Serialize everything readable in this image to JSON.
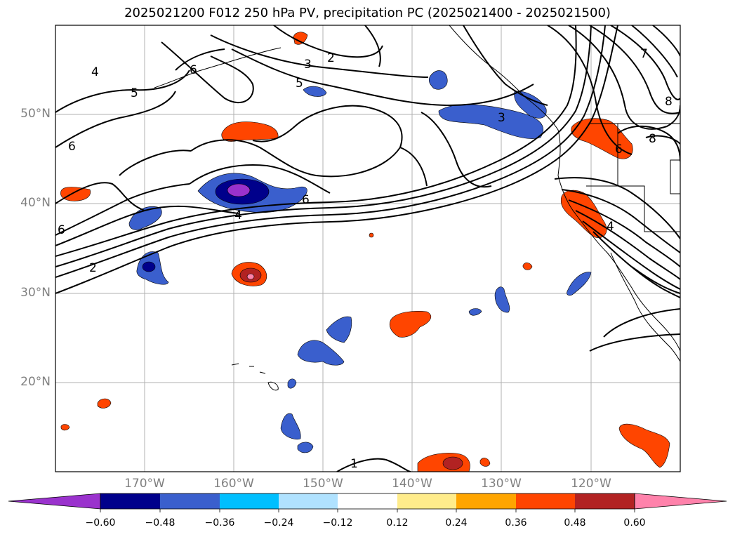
{
  "title": "2025021200 F012 250 hPa PV, precipitation PC (2025021400 - 2025021500)",
  "lat_labels": [
    "50°N",
    "40°N",
    "30°N",
    "20°N"
  ],
  "lon_labels": [
    "170°W",
    "160°W",
    "150°W",
    "140°W",
    "130°W",
    "120°W"
  ],
  "contour_labels": [
    "2",
    "3",
    "5",
    "4",
    "5",
    "6",
    "6",
    "6",
    "4",
    "2",
    "6",
    "3",
    "7",
    "8",
    "8",
    "6",
    "4",
    "1"
  ],
  "colorbar": {
    "ticks": [
      "−0.60",
      "−0.48",
      "−0.36",
      "−0.24",
      "−0.12",
      "0.12",
      "0.24",
      "0.36",
      "0.48",
      "0.60"
    ],
    "colors": [
      "#9a32cd",
      "#00008b",
      "#3a5fcd",
      "#00bfff",
      "#b0e2ff",
      "#ffffff",
      "#ffec8b",
      "#ffa500",
      "#ff4500",
      "#b22222",
      "#ff82ab"
    ]
  }
}
